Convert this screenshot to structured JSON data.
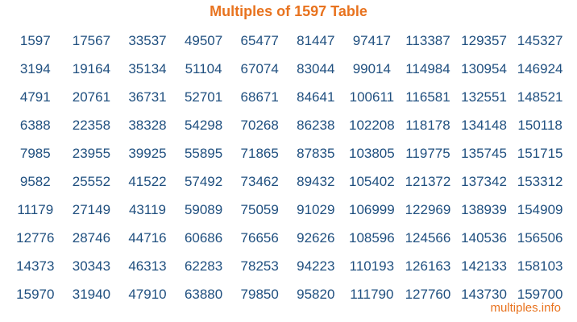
{
  "title": "Multiples of 1597 Table",
  "footer": "multiples.info",
  "colors": {
    "title": "#e8731f",
    "numbers": "#1f4f7f",
    "footer": "#e8731f"
  },
  "table": [
    [
      "1597",
      "17567",
      "33537",
      "49507",
      "65477",
      "81447",
      "97417",
      "113387",
      "129357",
      "145327"
    ],
    [
      "3194",
      "19164",
      "35134",
      "51104",
      "67074",
      "83044",
      "99014",
      "114984",
      "130954",
      "146924"
    ],
    [
      "4791",
      "20761",
      "36731",
      "52701",
      "68671",
      "84641",
      "100611",
      "116581",
      "132551",
      "148521"
    ],
    [
      "6388",
      "22358",
      "38328",
      "54298",
      "70268",
      "86238",
      "102208",
      "118178",
      "134148",
      "150118"
    ],
    [
      "7985",
      "23955",
      "39925",
      "55895",
      "71865",
      "87835",
      "103805",
      "119775",
      "135745",
      "151715"
    ],
    [
      "9582",
      "25552",
      "41522",
      "57492",
      "73462",
      "89432",
      "105402",
      "121372",
      "137342",
      "153312"
    ],
    [
      "11179",
      "27149",
      "43119",
      "59089",
      "75059",
      "91029",
      "106999",
      "122969",
      "138939",
      "154909"
    ],
    [
      "12776",
      "28746",
      "44716",
      "60686",
      "76656",
      "92626",
      "108596",
      "124566",
      "140536",
      "156506"
    ],
    [
      "14373",
      "30343",
      "46313",
      "62283",
      "78253",
      "94223",
      "110193",
      "126163",
      "142133",
      "158103"
    ],
    [
      "15970",
      "31940",
      "47910",
      "63880",
      "79850",
      "95820",
      "111790",
      "127760",
      "143730",
      "159700"
    ]
  ]
}
